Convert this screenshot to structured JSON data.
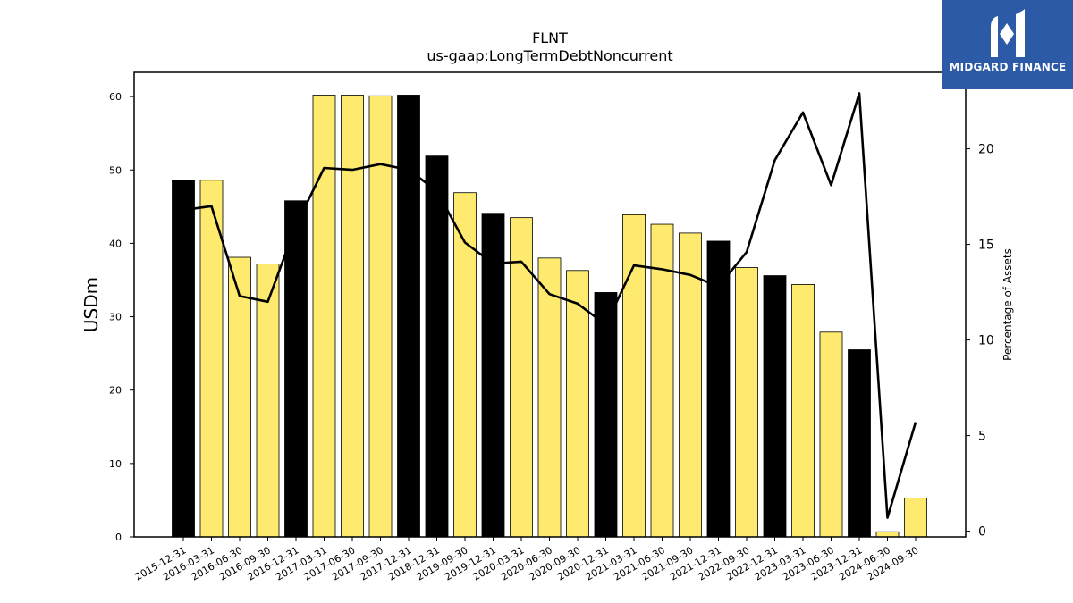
{
  "chart_data": {
    "type": "bar",
    "title": "FLNT",
    "subtitle": "us-gaap:LongTermDebtNoncurrent",
    "ylabel": "USDm",
    "y2label": "Percentage of Assets",
    "ylim": [
      0,
      63.3
    ],
    "y2lim": [
      -0.3,
      24.0
    ],
    "yticks": [
      0,
      10,
      20,
      30,
      40,
      50,
      60
    ],
    "y2ticks": [
      0,
      5,
      10,
      15,
      20
    ],
    "categories": [
      "2015-12-31",
      "2016-03-31",
      "2016-06-30",
      "2016-09-30",
      "2016-12-31",
      "2017-03-31",
      "2017-06-30",
      "2017-09-30",
      "2017-12-31",
      "2018-12-31",
      "2019-09-30",
      "2019-12-31",
      "2020-03-31",
      "2020-06-30",
      "2020-09-30",
      "2020-12-31",
      "2021-03-31",
      "2021-06-30",
      "2021-09-30",
      "2021-12-31",
      "2022-09-30",
      "2022-12-31",
      "2023-03-31",
      "2023-06-30",
      "2023-12-31",
      "2024-06-30",
      "2024-09-30"
    ],
    "series": [
      {
        "type": "bar",
        "values": [
          48.6,
          48.6,
          38.1,
          37.2,
          45.8,
          60.2,
          60.2,
          60.1,
          60.2,
          51.9,
          46.9,
          44.1,
          43.5,
          38.0,
          36.3,
          33.3,
          43.9,
          42.6,
          41.4,
          40.3,
          36.7,
          35.6,
          34.4,
          27.9,
          25.5,
          0.7,
          5.3
        ],
        "year_end": [
          true,
          false,
          false,
          false,
          true,
          false,
          false,
          false,
          true,
          true,
          false,
          true,
          false,
          false,
          false,
          true,
          false,
          false,
          false,
          true,
          false,
          true,
          false,
          false,
          true,
          false,
          false
        ]
      },
      {
        "type": "line",
        "axis": "right",
        "values": [
          16.8,
          17.0,
          12.3,
          12.0,
          16.0,
          19.0,
          18.9,
          19.2,
          18.9,
          17.8,
          15.1,
          14.0,
          14.1,
          12.4,
          11.9,
          10.8,
          13.9,
          13.7,
          13.4,
          12.8,
          14.6,
          19.4,
          21.9,
          18.1,
          22.9,
          0.7,
          5.7
        ]
      }
    ],
    "colors": {
      "year_end_bar": "#000000",
      "quarter_bar": "#fdea6e",
      "bar_edge": "#000000",
      "line": "#000000"
    },
    "grid": false,
    "legend": "none"
  },
  "logo": {
    "text": "MIDGARD FINANCE",
    "color": "#2d5aa6"
  }
}
